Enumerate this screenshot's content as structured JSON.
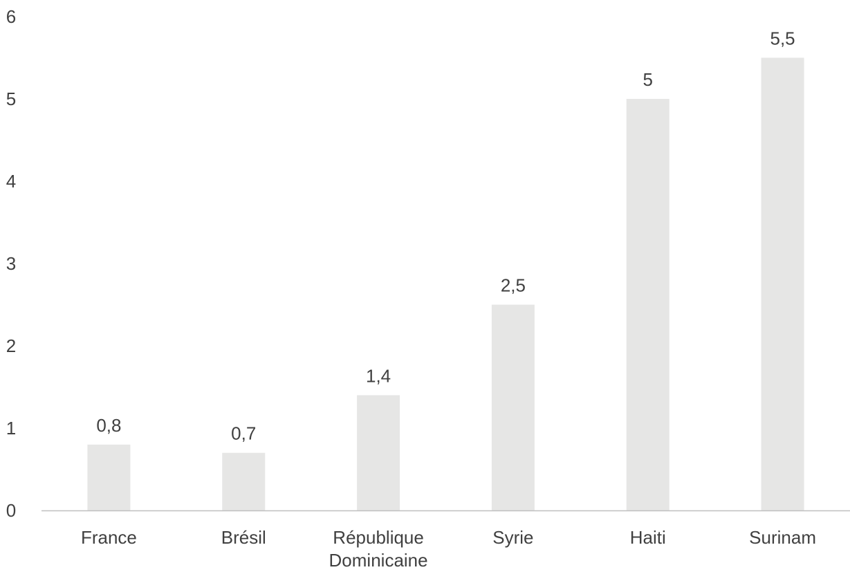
{
  "chart_data": {
    "type": "bar",
    "title": "",
    "xlabel": "",
    "ylabel": "",
    "categories": [
      [
        "France"
      ],
      [
        "Brésil"
      ],
      [
        "République",
        "Dominicaine"
      ],
      [
        "Syrie"
      ],
      [
        "Haiti"
      ],
      [
        "Surinam"
      ]
    ],
    "values": [
      0.8,
      0.7,
      1.4,
      2.5,
      5,
      5.5
    ],
    "data_labels": [
      "0,8",
      "0,7",
      "1,4",
      "2,5",
      "5",
      "5,5"
    ],
    "ylim": [
      0,
      6
    ],
    "yticks": [
      0,
      1,
      2,
      3,
      4,
      5,
      6
    ],
    "ytick_labels": [
      "0",
      "1",
      "2",
      "3",
      "4",
      "5",
      "6"
    ],
    "grid": false,
    "legend": "none",
    "colors": {
      "bar": "#e6e6e5",
      "axis": "#bfbfbf",
      "text": "#404040"
    }
  }
}
